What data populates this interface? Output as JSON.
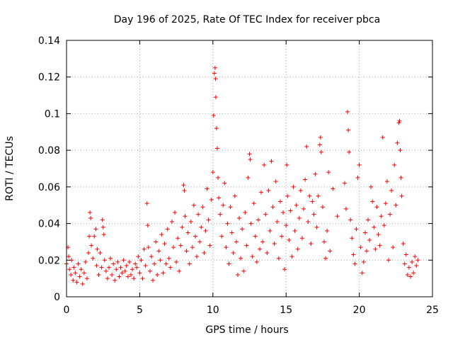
{
  "chart_data": {
    "type": "scatter",
    "title": "Day 196 of 2025, Rate Of TEC Index for receiver pbca",
    "xlabel": "GPS time / hours",
    "ylabel": "ROTI / TECUs",
    "xlim": [
      0,
      25
    ],
    "ylim": [
      0,
      0.14
    ],
    "xticks": [
      0,
      5,
      10,
      15,
      20,
      25
    ],
    "xtick_labels": [
      "0",
      "5",
      "10",
      "15",
      "20",
      "25"
    ],
    "yticks": [
      0,
      0.02,
      0.04,
      0.06,
      0.08,
      0.1,
      0.12,
      0.14
    ],
    "ytick_labels": [
      "0",
      "0.02",
      "0.04",
      "0.06",
      "0.08",
      "0.1",
      "0.12",
      "0.14"
    ],
    "grid": true,
    "marker": "plus",
    "color": "#ff0000",
    "series": [
      {
        "points": [
          [
            0.0,
            0.018
          ],
          [
            0.1,
            0.027
          ],
          [
            0.15,
            0.022
          ],
          [
            0.2,
            0.015
          ],
          [
            0.3,
            0.012
          ],
          [
            0.35,
            0.02
          ],
          [
            0.45,
            0.009
          ],
          [
            0.5,
            0.016
          ],
          [
            0.6,
            0.013
          ],
          [
            0.7,
            0.008
          ],
          [
            0.8,
            0.018
          ],
          [
            0.9,
            0.011
          ],
          [
            1.0,
            0.015
          ],
          [
            1.1,
            0.007
          ],
          [
            1.2,
            0.013
          ],
          [
            1.3,
            0.019
          ],
          [
            1.4,
            0.01
          ],
          [
            1.5,
            0.024
          ],
          [
            1.55,
            0.033
          ],
          [
            1.6,
            0.046
          ],
          [
            1.65,
            0.043
          ],
          [
            1.7,
            0.028
          ],
          [
            1.8,
            0.021
          ],
          [
            1.9,
            0.033
          ],
          [
            2.0,
            0.037
          ],
          [
            2.05,
            0.017
          ],
          [
            2.1,
            0.026
          ],
          [
            2.2,
            0.012
          ],
          [
            2.3,
            0.024
          ],
          [
            2.4,
            0.016
          ],
          [
            2.45,
            0.042
          ],
          [
            2.5,
            0.038
          ],
          [
            2.55,
            0.034
          ],
          [
            2.6,
            0.02
          ],
          [
            2.7,
            0.014
          ],
          [
            2.8,
            0.01
          ],
          [
            2.9,
            0.016
          ],
          [
            3.0,
            0.021
          ],
          [
            3.1,
            0.012
          ],
          [
            3.2,
            0.018
          ],
          [
            3.3,
            0.009
          ],
          [
            3.4,
            0.015
          ],
          [
            3.5,
            0.019
          ],
          [
            3.6,
            0.011
          ],
          [
            3.7,
            0.016
          ],
          [
            3.8,
            0.013
          ],
          [
            3.9,
            0.02
          ],
          [
            4.0,
            0.014
          ],
          [
            4.1,
            0.017
          ],
          [
            4.2,
            0.011
          ],
          [
            4.3,
            0.019
          ],
          [
            4.4,
            0.012
          ],
          [
            4.5,
            0.015
          ],
          [
            4.6,
            0.01
          ],
          [
            4.7,
            0.018
          ],
          [
            4.8,
            0.016
          ],
          [
            4.9,
            0.022
          ],
          [
            5.0,
            0.013
          ],
          [
            5.1,
            0.02
          ],
          [
            5.2,
            0.01
          ],
          [
            5.3,
            0.026
          ],
          [
            5.4,
            0.017
          ],
          [
            5.5,
            0.051
          ],
          [
            5.55,
            0.039
          ],
          [
            5.6,
            0.027
          ],
          [
            5.7,
            0.014
          ],
          [
            5.8,
            0.022
          ],
          [
            5.9,
            0.009
          ],
          [
            6.0,
            0.018
          ],
          [
            6.1,
            0.03
          ],
          [
            6.2,
            0.012
          ],
          [
            6.3,
            0.025
          ],
          [
            6.4,
            0.02
          ],
          [
            6.5,
            0.034
          ],
          [
            6.6,
            0.013
          ],
          [
            6.7,
            0.029
          ],
          [
            6.8,
            0.018
          ],
          [
            6.9,
            0.037
          ],
          [
            7.0,
            0.021
          ],
          [
            7.1,
            0.016
          ],
          [
            7.2,
            0.041
          ],
          [
            7.3,
            0.027
          ],
          [
            7.4,
            0.046
          ],
          [
            7.5,
            0.019
          ],
          [
            7.6,
            0.032
          ],
          [
            7.7,
            0.014
          ],
          [
            7.8,
            0.028
          ],
          [
            7.9,
            0.038
          ],
          [
            8.0,
            0.061
          ],
          [
            8.05,
            0.058
          ],
          [
            8.1,
            0.044
          ],
          [
            8.2,
            0.025
          ],
          [
            8.3,
            0.035
          ],
          [
            8.4,
            0.018
          ],
          [
            8.5,
            0.041
          ],
          [
            8.6,
            0.027
          ],
          [
            8.7,
            0.05
          ],
          [
            8.8,
            0.033
          ],
          [
            8.9,
            0.022
          ],
          [
            9.0,
            0.045
          ],
          [
            9.1,
            0.03
          ],
          [
            9.2,
            0.038
          ],
          [
            9.3,
            0.049
          ],
          [
            9.4,
            0.024
          ],
          [
            9.5,
            0.036
          ],
          [
            9.6,
            0.059
          ],
          [
            9.7,
            0.042
          ],
          [
            9.8,
            0.028
          ],
          [
            9.9,
            0.053
          ],
          [
            10.0,
            0.068
          ],
          [
            10.05,
            0.099
          ],
          [
            10.1,
            0.122
          ],
          [
            10.15,
            0.125
          ],
          [
            10.18,
            0.119
          ],
          [
            10.2,
            0.109
          ],
          [
            10.25,
            0.092
          ],
          [
            10.3,
            0.081
          ],
          [
            10.35,
            0.065
          ],
          [
            10.4,
            0.054
          ],
          [
            10.5,
            0.045
          ],
          [
            10.6,
            0.033
          ],
          [
            10.7,
            0.05
          ],
          [
            10.8,
            0.062
          ],
          [
            10.9,
            0.027
          ],
          [
            11.0,
            0.04
          ],
          [
            11.1,
            0.018
          ],
          [
            11.2,
            0.049
          ],
          [
            11.3,
            0.035
          ],
          [
            11.4,
            0.024
          ],
          [
            11.5,
            0.055
          ],
          [
            11.6,
            0.03
          ],
          [
            11.7,
            0.012
          ],
          [
            11.8,
            0.043
          ],
          [
            11.9,
            0.021
          ],
          [
            12.0,
            0.037
          ],
          [
            12.1,
            0.014
          ],
          [
            12.2,
            0.046
          ],
          [
            12.3,
            0.028
          ],
          [
            12.4,
            0.065
          ],
          [
            12.5,
            0.078
          ],
          [
            12.55,
            0.075
          ],
          [
            12.6,
            0.04
          ],
          [
            12.7,
            0.022
          ],
          [
            12.8,
            0.051
          ],
          [
            12.9,
            0.033
          ],
          [
            13.0,
            0.019
          ],
          [
            13.1,
            0.042
          ],
          [
            13.2,
            0.026
          ],
          [
            13.3,
            0.057
          ],
          [
            13.4,
            0.03
          ],
          [
            13.5,
            0.072
          ],
          [
            13.6,
            0.045
          ],
          [
            13.7,
            0.024
          ],
          [
            13.8,
            0.058
          ],
          [
            13.9,
            0.036
          ],
          [
            14.0,
            0.074
          ],
          [
            14.1,
            0.049
          ],
          [
            14.2,
            0.029
          ],
          [
            14.3,
            0.063
          ],
          [
            14.4,
            0.041
          ],
          [
            14.5,
            0.021
          ],
          [
            14.6,
            0.052
          ],
          [
            14.7,
            0.033
          ],
          [
            14.8,
            0.046
          ],
          [
            14.9,
            0.015
          ],
          [
            15.0,
            0.039
          ],
          [
            15.05,
            0.072
          ],
          [
            15.1,
            0.055
          ],
          [
            15.2,
            0.031
          ],
          [
            15.3,
            0.047
          ],
          [
            15.4,
            0.022
          ],
          [
            15.5,
            0.06
          ],
          [
            15.6,
            0.036
          ],
          [
            15.7,
            0.05
          ],
          [
            15.8,
            0.026
          ],
          [
            15.9,
            0.043
          ],
          [
            16.0,
            0.058
          ],
          [
            16.1,
            0.032
          ],
          [
            16.2,
            0.048
          ],
          [
            16.3,
            0.064
          ],
          [
            16.4,
            0.082
          ],
          [
            16.5,
            0.041
          ],
          [
            16.6,
            0.055
          ],
          [
            16.7,
            0.029
          ],
          [
            16.8,
            0.052
          ],
          [
            16.9,
            0.045
          ],
          [
            17.0,
            0.067
          ],
          [
            17.1,
            0.038
          ],
          [
            17.2,
            0.055
          ],
          [
            17.3,
            0.083
          ],
          [
            17.35,
            0.087
          ],
          [
            17.4,
            0.079
          ],
          [
            17.5,
            0.049
          ],
          [
            17.6,
            0.03
          ],
          [
            17.7,
            0.021
          ],
          [
            17.8,
            0.036
          ],
          [
            17.9,
            0.068
          ],
          [
            18.0,
            0.025
          ],
          [
            18.2,
            0.059
          ],
          [
            18.5,
            0.044
          ],
          [
            19.0,
            0.062
          ],
          [
            19.1,
            0.048
          ],
          [
            19.2,
            0.101
          ],
          [
            19.25,
            0.091
          ],
          [
            19.3,
            0.079
          ],
          [
            19.4,
            0.042
          ],
          [
            19.5,
            0.032
          ],
          [
            19.6,
            0.023
          ],
          [
            19.7,
            0.018
          ],
          [
            19.8,
            0.037
          ],
          [
            19.9,
            0.065
          ],
          [
            20.0,
            0.072
          ],
          [
            20.1,
            0.027
          ],
          [
            20.2,
            0.013
          ],
          [
            20.3,
            0.019
          ],
          [
            20.4,
            0.035
          ],
          [
            20.5,
            0.025
          ],
          [
            20.6,
            0.042
          ],
          [
            20.7,
            0.031
          ],
          [
            20.8,
            0.06
          ],
          [
            20.9,
            0.052
          ],
          [
            21.0,
            0.038
          ],
          [
            21.1,
            0.026
          ],
          [
            21.2,
            0.049
          ],
          [
            21.3,
            0.034
          ],
          [
            21.4,
            0.028
          ],
          [
            21.5,
            0.044
          ],
          [
            21.6,
            0.087
          ],
          [
            21.7,
            0.039
          ],
          [
            21.8,
            0.051
          ],
          [
            21.9,
            0.063
          ],
          [
            22.0,
            0.02
          ],
          [
            22.1,
            0.045
          ],
          [
            22.2,
            0.058
          ],
          [
            22.3,
            0.027
          ],
          [
            22.4,
            0.072
          ],
          [
            22.5,
            0.05
          ],
          [
            22.6,
            0.084
          ],
          [
            22.7,
            0.095
          ],
          [
            22.75,
            0.096
          ],
          [
            22.8,
            0.08
          ],
          [
            22.85,
            0.065
          ],
          [
            22.9,
            0.055
          ],
          [
            23.0,
            0.029
          ],
          [
            23.1,
            0.018
          ],
          [
            23.2,
            0.023
          ],
          [
            23.3,
            0.012
          ],
          [
            23.4,
            0.016
          ],
          [
            23.5,
            0.011
          ],
          [
            23.6,
            0.019
          ],
          [
            23.7,
            0.013
          ],
          [
            23.8,
            0.022
          ],
          [
            23.9,
            0.017
          ],
          [
            24.0,
            0.02
          ]
        ]
      }
    ]
  }
}
